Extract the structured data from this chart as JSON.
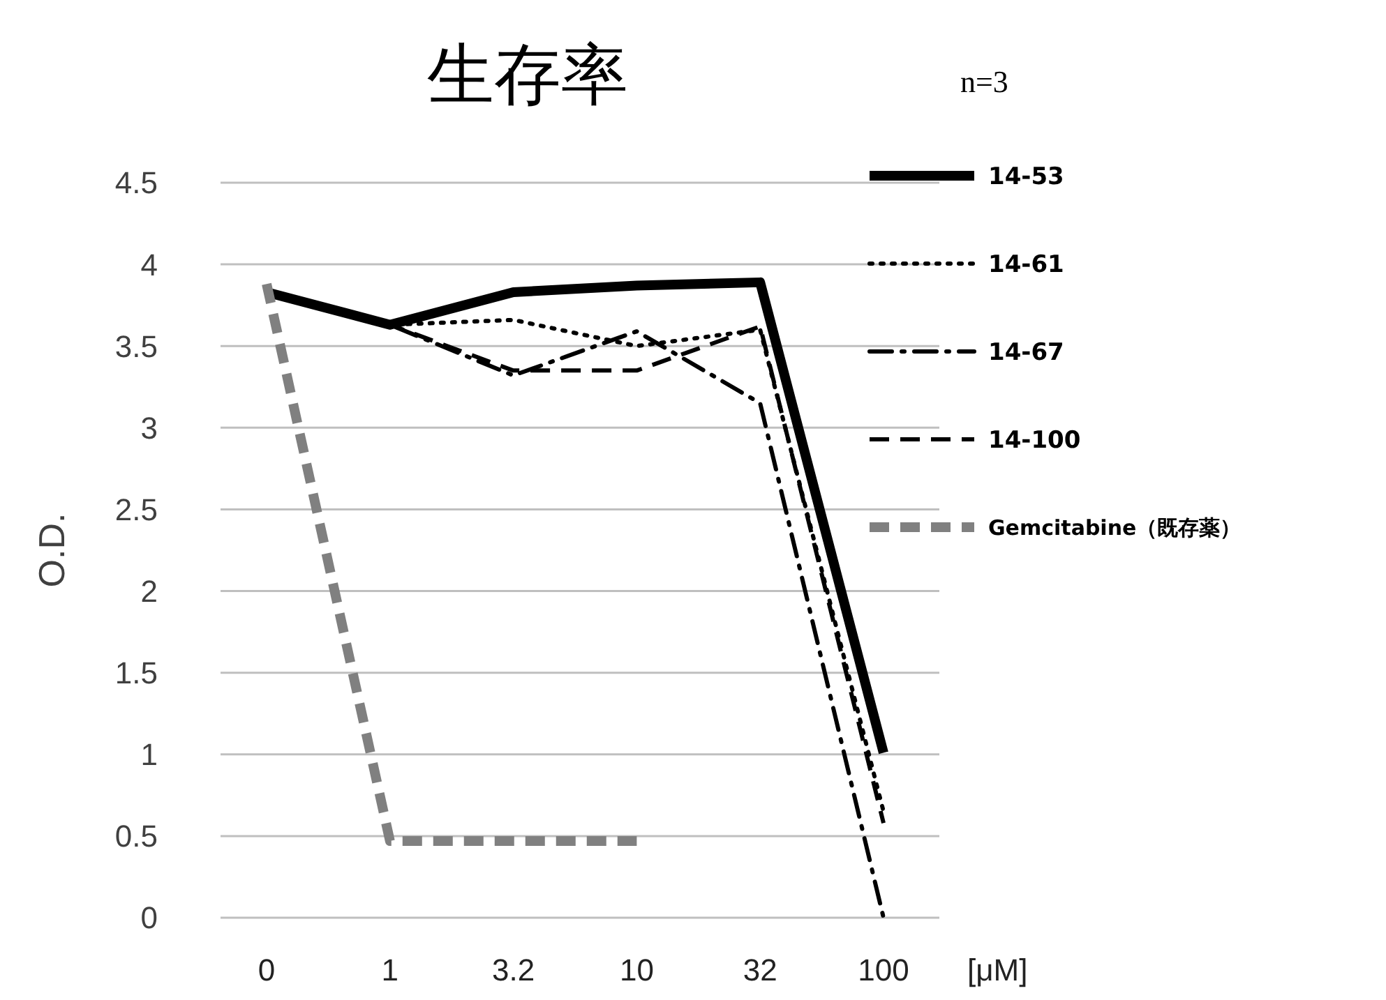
{
  "chart_data": {
    "type": "line",
    "title": "生存率",
    "xlabel": "[μM]",
    "ylabel": "O.D.",
    "annotations": [
      "n=3"
    ],
    "categories": [
      "0",
      "1",
      "3.2",
      "10",
      "32",
      "100"
    ],
    "ylim": [
      0,
      4.5
    ],
    "yticks": [
      0,
      0.5,
      1,
      1.5,
      2,
      2.5,
      3,
      3.5,
      4,
      4.5
    ],
    "grid": "y",
    "legend": "right",
    "marker": "none",
    "series": [
      {
        "name": "14-53",
        "color": "#000000",
        "line_style": "solid",
        "values": [
          3.83,
          3.63,
          3.83,
          3.87,
          3.89,
          1.01
        ]
      },
      {
        "name": "14-61",
        "color": "#000000",
        "line_style": "dotted",
        "values": [
          3.83,
          3.63,
          3.66,
          3.5,
          3.6,
          0.65
        ]
      },
      {
        "name": "14-67",
        "color": "#000000",
        "line_style": "dashdot",
        "values": [
          3.83,
          3.63,
          3.32,
          3.59,
          3.15,
          0
        ]
      },
      {
        "name": "14-100",
        "color": "#000000",
        "line_style": "dashed",
        "values": [
          3.83,
          3.63,
          3.35,
          3.35,
          3.62,
          0.58
        ]
      },
      {
        "name": "Gemcitabine（既存薬）",
        "color": "#808080",
        "line_style": "dashed",
        "values": [
          3.88,
          0.47,
          0.47,
          0.47,
          null,
          null
        ]
      }
    ]
  }
}
